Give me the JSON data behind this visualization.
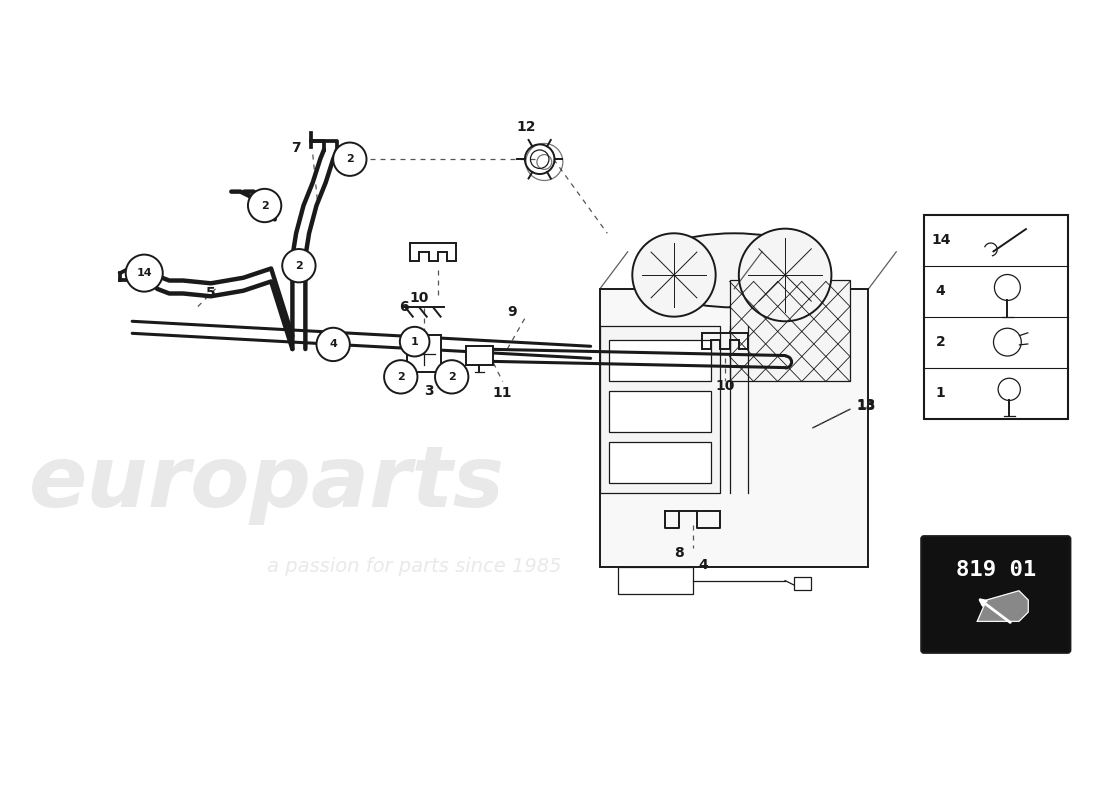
{
  "background_color": "#ffffff",
  "part_number_box": "819 01",
  "watermark1": "europarts",
  "watermark2": "a passion for parts since 1985",
  "line_color": "#1a1a1a",
  "dash_color": "#555555"
}
